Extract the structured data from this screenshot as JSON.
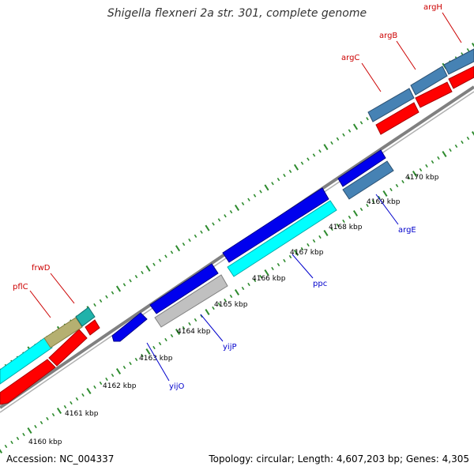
{
  "title": "Shigella flexneri 2a str. 301, complete genome",
  "accession_text": "Accession: NC_004337",
  "summary_text": "Topology: circular; Length: 4,607,203 bp; Genes: 4,305",
  "colors": {
    "backbone": "#808080",
    "tick": "#2e8b2e",
    "forward_label": "#cc0000",
    "reverse_label": "#0000cc",
    "red": "#ff0000",
    "blue": "#0000ee",
    "cyan": "#00ffff",
    "steelblue": "#4682b4",
    "olive": "#b5b071",
    "silver": "#c0c0c0",
    "teal": "#20b2aa"
  },
  "ruler": {
    "unit": "kbp",
    "labels": [
      "4160 kbp",
      "4161 kbp",
      "4162 kbp",
      "4163 kbp",
      "4164 kbp",
      "4165 kbp",
      "4166 kbp",
      "4167 kbp",
      "4168 kbp",
      "4169 kbp",
      "4170 kbp"
    ],
    "start_kbp": 4160,
    "end_kbp": 4170
  },
  "gene_labels": {
    "forward": [
      "pflC",
      "frwD",
      "argC",
      "argB",
      "argH"
    ],
    "reverse": [
      "yijO",
      "yijP",
      "ppc",
      "argE"
    ]
  }
}
